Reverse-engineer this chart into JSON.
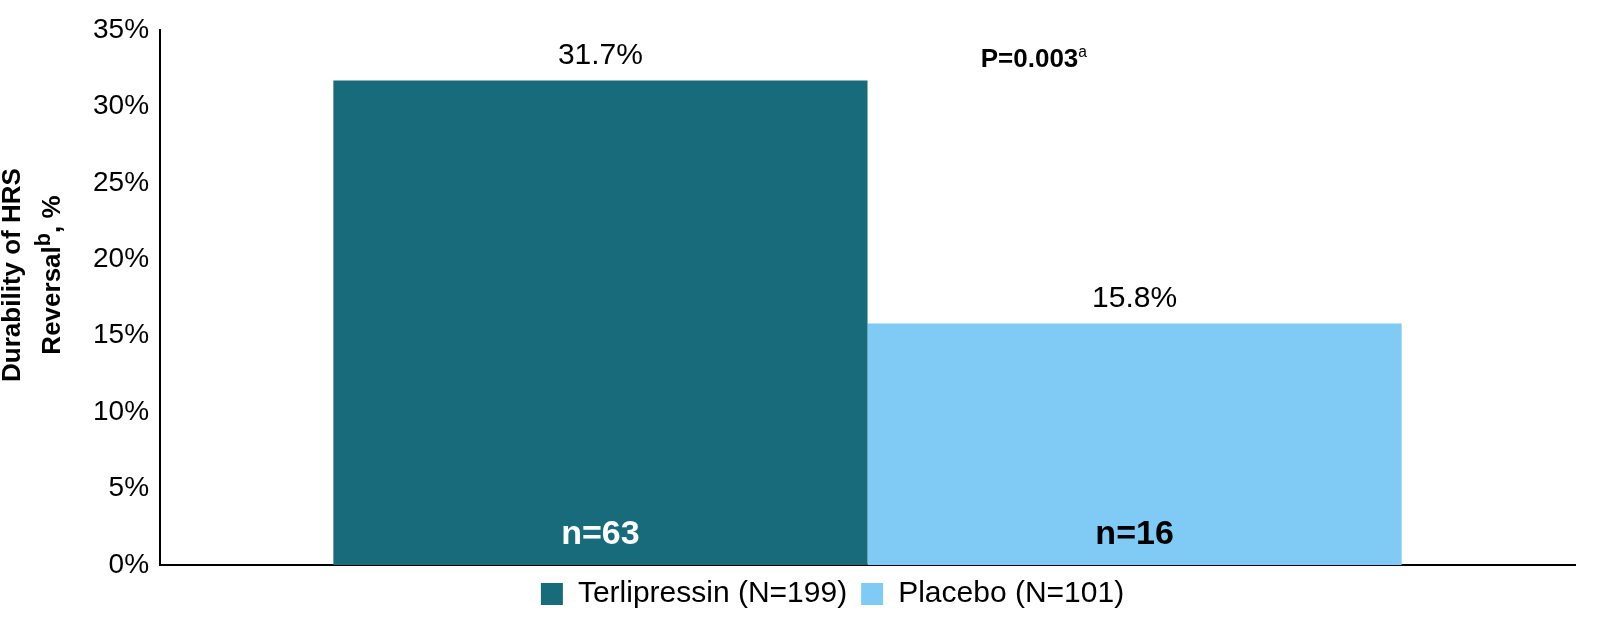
{
  "chart_data": {
    "type": "bar",
    "categories": [
      null
    ],
    "series": [
      {
        "name": "Terlipressin (N=199)",
        "color": "#176b7b",
        "values": [
          31.7
        ],
        "value_labels": [
          "31.7%"
        ]
      },
      {
        "name": "Placebo (N=101)",
        "color": "#80cbf5",
        "values": [
          15.8
        ],
        "value_labels": [
          "15.8%"
        ]
      }
    ],
    "ylabel": "Durability of HRS Reversal$^{b}$, %",
    "ylim": [
      0,
      35
    ],
    "yticks": [
      {
        "value": 0,
        "label": "0%"
      },
      {
        "value": 5,
        "label": "5%"
      },
      {
        "value": 10,
        "label": "10%"
      },
      {
        "value": 15,
        "label": "15%"
      },
      {
        "value": 20,
        "label": "20%"
      },
      {
        "value": 25,
        "label": "25%"
      },
      {
        "value": 30,
        "label": "30%"
      },
      {
        "value": 35,
        "label": "35%"
      }
    ],
    "annotations": [
      "P=0.003$^{a}$",
      "n=63",
      "n=16"
    ],
    "grid": false,
    "legend": "bottom"
  }
}
